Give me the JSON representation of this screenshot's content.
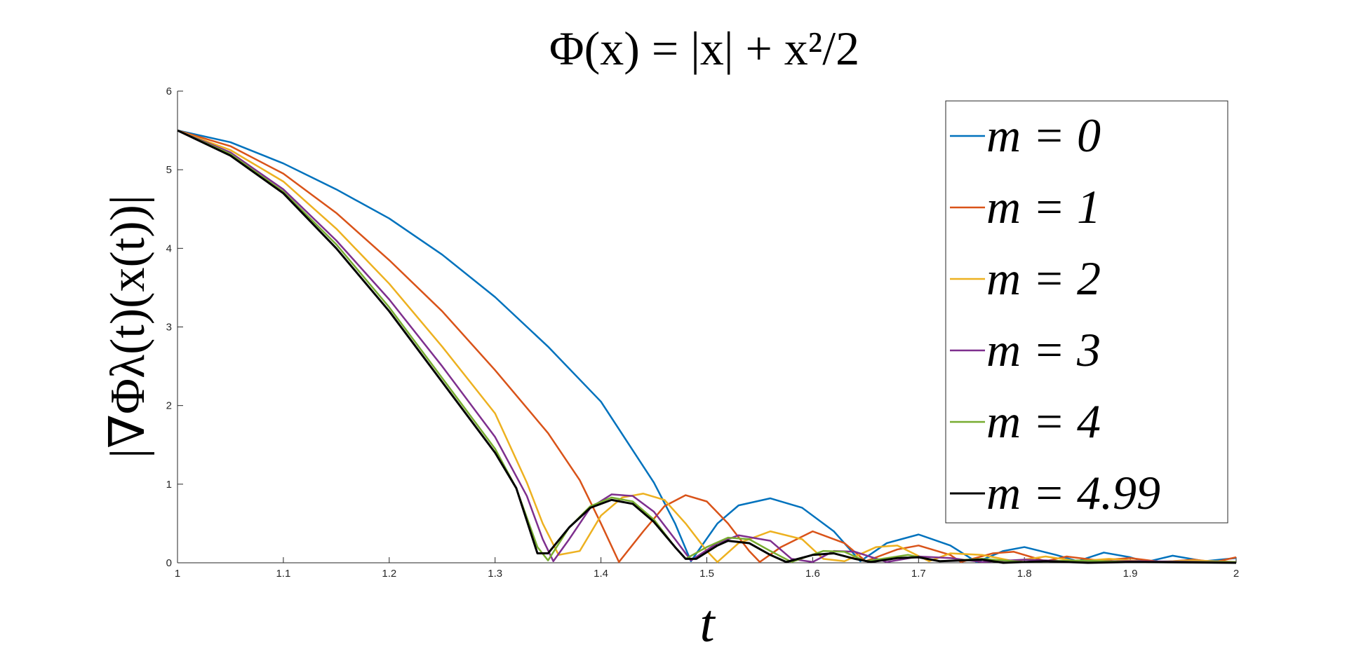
{
  "chart_data": {
    "type": "line",
    "title": "Φ(x) = |x| + x²/2",
    "x_label": "t",
    "y_label": "|∇Φλ(t)(x(t))|",
    "xlim": [
      1,
      2
    ],
    "xticks": [
      1,
      1.1,
      1.2,
      1.3,
      1.4,
      1.5,
      1.6,
      1.7,
      1.8,
      1.9,
      2
    ],
    "ylim": [
      0,
      6
    ],
    "yticks": [
      0,
      1,
      2,
      3,
      4,
      5,
      6
    ],
    "grid": false,
    "legend": "upper right",
    "series": [
      {
        "name": "m = 0",
        "color": "#0072BD",
        "x": [
          1,
          1.05,
          1.1,
          1.15,
          1.2,
          1.25,
          1.3,
          1.35,
          1.4,
          1.45,
          1.47,
          1.485,
          1.51,
          1.53,
          1.56,
          1.59,
          1.62,
          1.645,
          1.67,
          1.7,
          1.73,
          1.755,
          1.78,
          1.8,
          1.83,
          1.85,
          1.875,
          1.9,
          1.915,
          1.94,
          1.97,
          2
        ],
        "values": [
          5.5,
          5.35,
          5.08,
          4.75,
          4.38,
          3.92,
          3.38,
          2.75,
          2.05,
          1.02,
          0.5,
          0.02,
          0.5,
          0.73,
          0.82,
          0.7,
          0.4,
          0.02,
          0.25,
          0.36,
          0.22,
          0.01,
          0.15,
          0.2,
          0.1,
          0.02,
          0.13,
          0.07,
          0.01,
          0.09,
          0.02,
          0.06
        ]
      },
      {
        "name": "m = 1",
        "color": "#D95319",
        "x": [
          1,
          1.05,
          1.1,
          1.15,
          1.2,
          1.25,
          1.3,
          1.35,
          1.38,
          1.4,
          1.417,
          1.44,
          1.46,
          1.48,
          1.5,
          1.52,
          1.54,
          1.55,
          1.57,
          1.6,
          1.63,
          1.65,
          1.68,
          1.7,
          1.73,
          1.74,
          1.77,
          1.79,
          1.82,
          1.84,
          1.87,
          1.9,
          1.93,
          1.96,
          1.98,
          2
        ],
        "values": [
          5.5,
          5.3,
          4.95,
          4.45,
          3.85,
          3.2,
          2.45,
          1.65,
          1.05,
          0.5,
          0.01,
          0.4,
          0.72,
          0.86,
          0.78,
          0.5,
          0.15,
          0.01,
          0.2,
          0.4,
          0.25,
          0.02,
          0.17,
          0.22,
          0.1,
          0.01,
          0.12,
          0.14,
          0.02,
          0.08,
          0.03,
          0.06,
          0.01,
          0.04,
          0.01,
          0.07
        ]
      },
      {
        "name": "m = 2",
        "color": "#EDB120",
        "x": [
          1,
          1.05,
          1.1,
          1.15,
          1.2,
          1.25,
          1.3,
          1.33,
          1.345,
          1.36,
          1.38,
          1.4,
          1.42,
          1.44,
          1.46,
          1.48,
          1.5,
          1.51,
          1.53,
          1.56,
          1.59,
          1.61,
          1.63,
          1.66,
          1.68,
          1.71,
          1.73,
          1.76,
          1.79,
          1.82,
          1.85,
          1.88,
          1.92,
          1.96,
          2
        ],
        "values": [
          5.5,
          5.25,
          4.85,
          4.25,
          3.55,
          2.75,
          1.9,
          1.02,
          0.5,
          0.1,
          0.15,
          0.6,
          0.83,
          0.88,
          0.8,
          0.5,
          0.15,
          0.01,
          0.25,
          0.4,
          0.3,
          0.05,
          0.02,
          0.2,
          0.22,
          0.02,
          0.12,
          0.1,
          0.02,
          0.08,
          0.02,
          0.05,
          0.01,
          0.03,
          0.01
        ]
      },
      {
        "name": "m = 3",
        "color": "#7E2F8E",
        "x": [
          1,
          1.05,
          1.1,
          1.15,
          1.2,
          1.25,
          1.3,
          1.33,
          1.345,
          1.355,
          1.37,
          1.39,
          1.41,
          1.43,
          1.45,
          1.47,
          1.485,
          1.51,
          1.53,
          1.56,
          1.58,
          1.6,
          1.62,
          1.64,
          1.67,
          1.7,
          1.73,
          1.76,
          1.8,
          1.84,
          1.9,
          2
        ],
        "values": [
          5.5,
          5.22,
          4.75,
          4.1,
          3.35,
          2.5,
          1.6,
          0.85,
          0.3,
          0.02,
          0.3,
          0.7,
          0.87,
          0.85,
          0.65,
          0.3,
          0.03,
          0.25,
          0.35,
          0.28,
          0.05,
          0.01,
          0.15,
          0.14,
          0.01,
          0.08,
          0.06,
          0.01,
          0.04,
          0.02,
          0.02,
          0.01
        ]
      },
      {
        "name": "m = 4",
        "color": "#77AC30",
        "x": [
          1,
          1.05,
          1.1,
          1.15,
          1.2,
          1.25,
          1.3,
          1.32,
          1.34,
          1.35,
          1.37,
          1.39,
          1.41,
          1.43,
          1.45,
          1.47,
          1.48,
          1.5,
          1.52,
          1.54,
          1.56,
          1.58,
          1.61,
          1.63,
          1.65,
          1.69,
          1.72,
          1.76,
          1.8,
          1.85,
          1.9,
          2
        ],
        "values": [
          5.5,
          5.2,
          4.72,
          4.05,
          3.25,
          2.35,
          1.45,
          0.95,
          0.2,
          0.03,
          0.45,
          0.72,
          0.83,
          0.78,
          0.55,
          0.2,
          0.05,
          0.2,
          0.32,
          0.3,
          0.15,
          0.01,
          0.15,
          0.14,
          0.02,
          0.1,
          0.02,
          0.05,
          0.01,
          0.03,
          0.01,
          0.01
        ]
      },
      {
        "name": "m = 4.99",
        "color": "#000000",
        "x": [
          1,
          1.05,
          1.1,
          1.15,
          1.2,
          1.25,
          1.3,
          1.32,
          1.34,
          1.35,
          1.37,
          1.39,
          1.41,
          1.43,
          1.45,
          1.47,
          1.48,
          1.49,
          1.51,
          1.52,
          1.54,
          1.56,
          1.575,
          1.6,
          1.62,
          1.64,
          1.655,
          1.68,
          1.7,
          1.72,
          1.76,
          1.78,
          1.82,
          1.86,
          1.9,
          2
        ],
        "values": [
          5.5,
          5.18,
          4.7,
          4.0,
          3.2,
          2.3,
          1.4,
          0.95,
          0.12,
          0.12,
          0.45,
          0.7,
          0.8,
          0.75,
          0.52,
          0.2,
          0.05,
          0.05,
          0.22,
          0.28,
          0.25,
          0.1,
          0.01,
          0.1,
          0.12,
          0.05,
          0.01,
          0.06,
          0.07,
          0.02,
          0.04,
          0,
          0.02,
          0,
          0.01,
          0
        ]
      }
    ]
  }
}
